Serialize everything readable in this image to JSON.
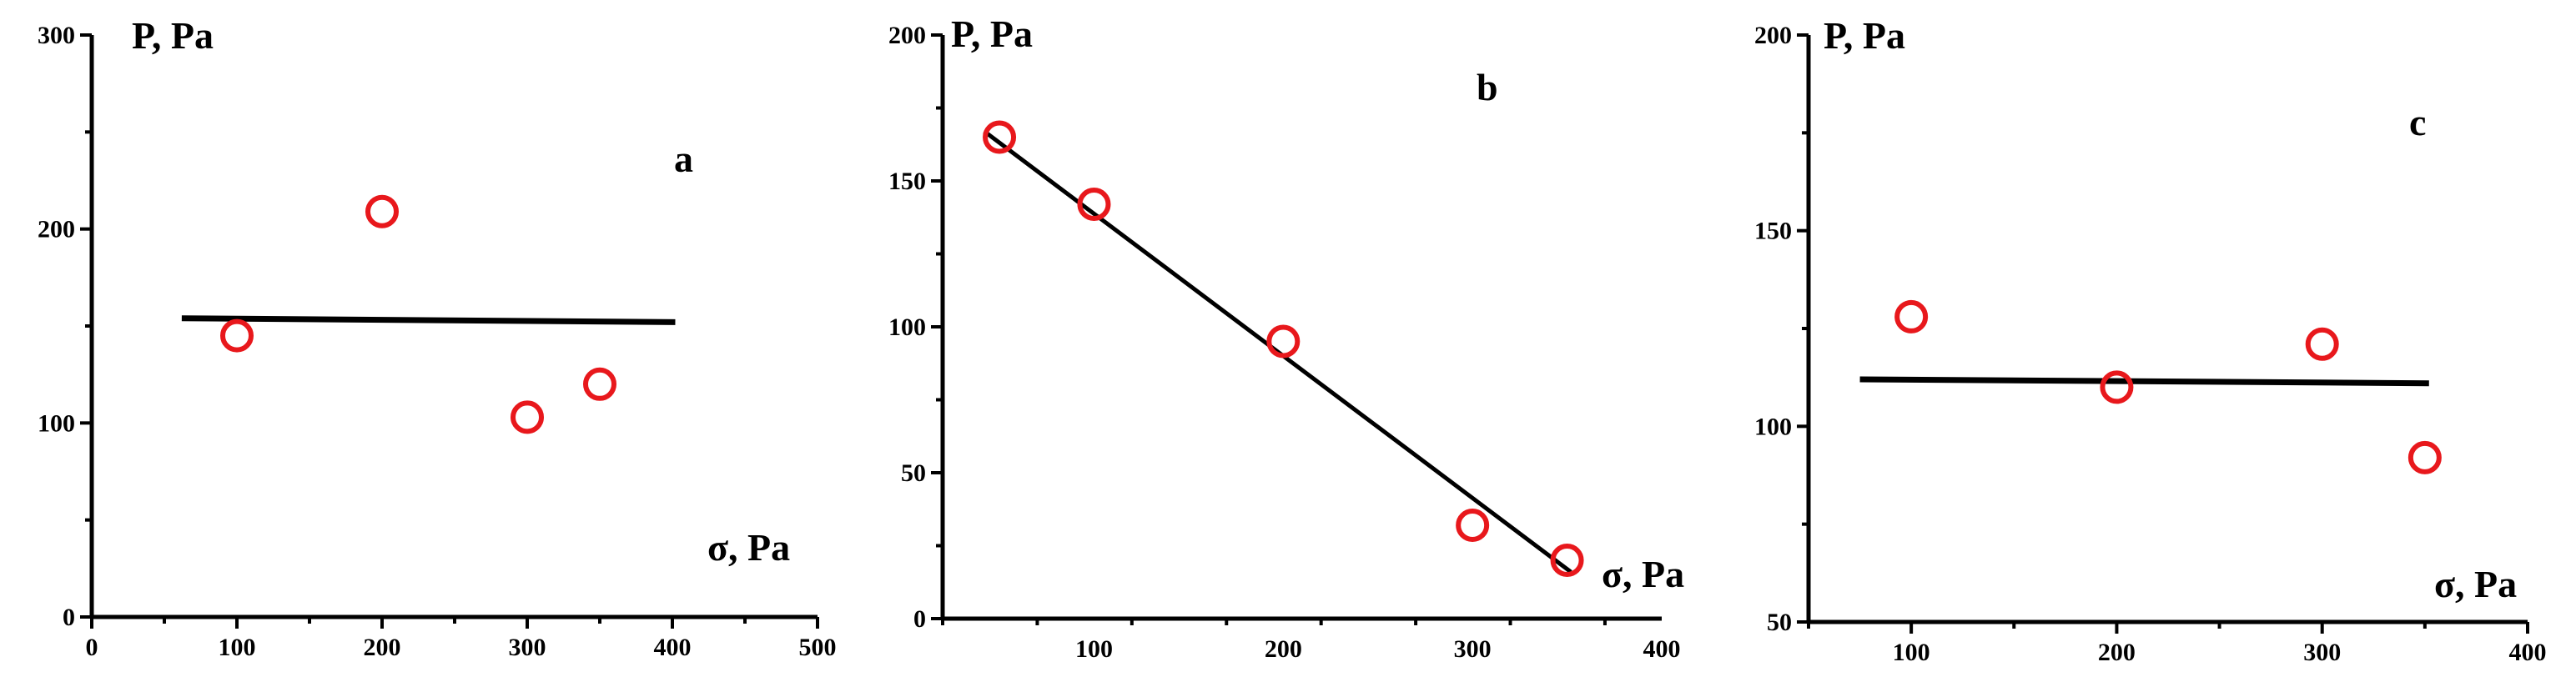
{
  "chart_data": [
    {
      "type": "scatter",
      "panel_label": "a",
      "ylabel": "P, Pa",
      "xlabel": "σ, Pa",
      "xlim": [
        0,
        500
      ],
      "ylim": [
        0,
        300
      ],
      "xticks": [
        0,
        100,
        200,
        300,
        400,
        500
      ],
      "yticks": [
        0,
        100,
        200,
        300
      ],
      "points": [
        {
          "x": 100,
          "y": 145
        },
        {
          "x": 200,
          "y": 209
        },
        {
          "x": 300,
          "y": 103
        },
        {
          "x": 350,
          "y": 120
        }
      ],
      "fit_line": {
        "x": [
          62,
          402
        ],
        "y": [
          154,
          152
        ]
      },
      "marker_color": "#e8181c",
      "line_color": "#000000"
    },
    {
      "type": "scatter",
      "panel_label": "b",
      "ylabel": "P, Pa",
      "xlabel": "σ, Pa",
      "xlim": [
        20,
        400
      ],
      "ylim": [
        0,
        200
      ],
      "xticks": [
        100,
        200,
        300,
        400
      ],
      "yticks": [
        0,
        50,
        100,
        150,
        200
      ],
      "points": [
        {
          "x": 50,
          "y": 165
        },
        {
          "x": 100,
          "y": 142
        },
        {
          "x": 200,
          "y": 95
        },
        {
          "x": 300,
          "y": 32
        },
        {
          "x": 350,
          "y": 20
        }
      ],
      "fit_line": {
        "x": [
          42,
          352
        ],
        "y": [
          167,
          16
        ]
      },
      "marker_color": "#e8181c",
      "line_color": "#000000"
    },
    {
      "type": "scatter",
      "panel_label": "c",
      "ylabel": "P, Pa",
      "xlabel": "σ, Pa",
      "xlim": [
        50,
        400
      ],
      "ylim": [
        50,
        200
      ],
      "xticks": [
        100,
        200,
        300,
        400
      ],
      "yticks": [
        50,
        100,
        150,
        200
      ],
      "points": [
        {
          "x": 100,
          "y": 128
        },
        {
          "x": 200,
          "y": 110
        },
        {
          "x": 300,
          "y": 121
        },
        {
          "x": 350,
          "y": 92
        }
      ],
      "fit_line": {
        "x": [
          75,
          352
        ],
        "y": [
          112,
          111
        ]
      },
      "marker_color": "#e8181c",
      "line_color": "#000000"
    }
  ]
}
